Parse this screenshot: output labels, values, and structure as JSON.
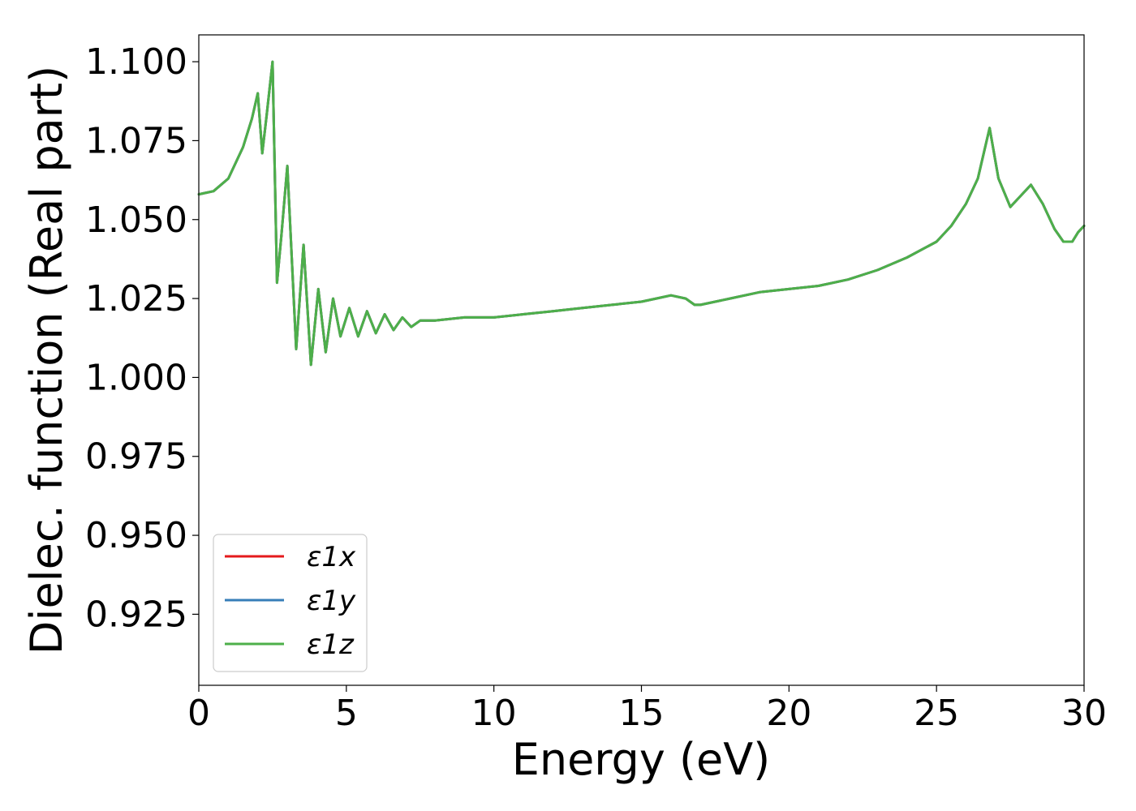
{
  "chart_data": {
    "type": "line",
    "title": "",
    "xlabel": "Energy (eV)",
    "ylabel": "Dielec. function (Real part)",
    "xlim": [
      0,
      30
    ],
    "ylim": [
      0.9025,
      1.1085
    ],
    "xticks": [
      0,
      5,
      10,
      15,
      20,
      25,
      30
    ],
    "xtick_labels": [
      "0",
      "5",
      "10",
      "15",
      "20",
      "25",
      "30"
    ],
    "yticks": [
      0.925,
      0.95,
      0.975,
      1.0,
      1.025,
      1.05,
      1.075,
      1.1
    ],
    "ytick_labels": [
      "0.925",
      "0.950",
      "0.975",
      "1.000",
      "1.025",
      "1.050",
      "1.075",
      "1.100"
    ],
    "grid": false,
    "legend_position": "lower-left",
    "series": [
      {
        "name": "ε1x",
        "color": "#e41a1c"
      },
      {
        "name": "ε1y",
        "color": "#377eb8"
      },
      {
        "name": "ε1z",
        "color": "#4daf4a"
      }
    ],
    "x": [
      0,
      0.5,
      1.0,
      1.5,
      1.8,
      2.0,
      2.15,
      2.3,
      2.5,
      2.65,
      2.8,
      3.0,
      3.3,
      3.55,
      3.8,
      4.05,
      4.3,
      4.55,
      4.8,
      5.1,
      5.4,
      5.7,
      6.0,
      6.3,
      6.6,
      6.9,
      7.2,
      7.5,
      8.0,
      9.0,
      10.0,
      11.0,
      12.0,
      13.0,
      14.0,
      15.0,
      15.5,
      16.0,
      16.5,
      16.8,
      17.0,
      17.5,
      18.0,
      19.0,
      20.0,
      21.0,
      22.0,
      23.0,
      24.0,
      25.0,
      25.5,
      26.0,
      26.4,
      26.8,
      27.1,
      27.5,
      27.8,
      28.2,
      28.6,
      29.0,
      29.3,
      29.6,
      29.8,
      30.0
    ],
    "y": [
      1.058,
      1.059,
      1.063,
      1.073,
      1.082,
      1.09,
      1.071,
      1.083,
      1.1,
      1.03,
      1.045,
      1.067,
      1.009,
      1.042,
      1.004,
      1.028,
      1.008,
      1.025,
      1.013,
      1.022,
      1.013,
      1.021,
      1.014,
      1.02,
      1.015,
      1.019,
      1.016,
      1.018,
      1.018,
      1.019,
      1.019,
      1.02,
      1.021,
      1.022,
      1.023,
      1.024,
      1.025,
      1.026,
      1.025,
      1.023,
      1.023,
      1.024,
      1.025,
      1.027,
      1.028,
      1.029,
      1.031,
      1.034,
      1.038,
      1.043,
      1.048,
      1.055,
      1.063,
      1.079,
      1.063,
      1.054,
      1.057,
      1.061,
      1.055,
      1.047,
      1.043,
      1.043,
      1.046,
      1.048
    ]
  }
}
